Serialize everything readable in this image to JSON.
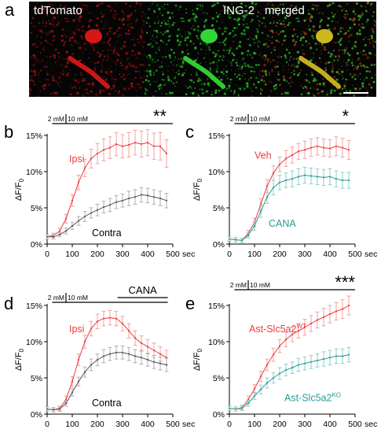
{
  "panel_a": {
    "letter": "a",
    "images": [
      {
        "label": "tdTomato",
        "channel": "red"
      },
      {
        "label": "ING-2",
        "channel": "green"
      },
      {
        "label": "merged",
        "channel": "merged"
      }
    ]
  },
  "colors": {
    "red": "#ee3b3b",
    "red_light": "#f4a0a0",
    "gray": "#555555",
    "gray_light": "#b0b0b0",
    "teal": "#2a9a95",
    "teal_light": "#8fcfcb"
  },
  "axis_common": {
    "ylabel": "ΔF/F",
    "ylabel_sub": "0",
    "xunit": "sec"
  },
  "chart_data": [
    {
      "panel": "b",
      "type": "line",
      "xlim": [
        0,
        500
      ],
      "ylim": [
        0,
        15
      ],
      "xticks": [
        "0",
        "100",
        "200",
        "300",
        "400",
        "500"
      ],
      "yticks": [
        "0%",
        "5%",
        "10%",
        "15%"
      ],
      "stim": {
        "label1": "2 mM",
        "label2": "10 mM",
        "stars": "**"
      },
      "series": [
        {
          "name": "Ipsi",
          "color": "red",
          "x": [
            0,
            25,
            50,
            75,
            100,
            125,
            150,
            175,
            200,
            225,
            250,
            275,
            300,
            325,
            350,
            375,
            400,
            425,
            450,
            475
          ],
          "y": [
            1.0,
            1.2,
            1.8,
            3.5,
            6.0,
            8.5,
            10.5,
            11.8,
            12.5,
            13.0,
            13.3,
            13.8,
            13.5,
            13.7,
            14.0,
            13.8,
            14.0,
            13.5,
            13.5,
            12.5
          ],
          "err": [
            0.3,
            0.3,
            0.4,
            0.6,
            0.8,
            1.0,
            1.2,
            1.3,
            1.4,
            1.5,
            1.5,
            1.6,
            1.6,
            1.7,
            1.7,
            1.8,
            1.8,
            1.8,
            1.9,
            1.9
          ]
        },
        {
          "name": "Contra",
          "color": "gray",
          "x": [
            0,
            25,
            50,
            75,
            100,
            125,
            150,
            175,
            200,
            225,
            250,
            275,
            300,
            325,
            350,
            375,
            400,
            425,
            450,
            475
          ],
          "y": [
            1.0,
            1.0,
            1.3,
            1.8,
            2.5,
            3.2,
            3.8,
            4.3,
            4.7,
            5.1,
            5.4,
            5.8,
            6.0,
            6.3,
            6.5,
            6.8,
            6.7,
            6.5,
            6.3,
            6.0
          ],
          "err": [
            0.3,
            0.3,
            0.3,
            0.4,
            0.5,
            0.6,
            0.7,
            0.7,
            0.8,
            0.8,
            0.9,
            0.9,
            0.9,
            1.0,
            1.0,
            1.0,
            1.0,
            1.0,
            1.0,
            1.0
          ]
        }
      ]
    },
    {
      "panel": "c",
      "type": "line",
      "xlim": [
        0,
        500
      ],
      "ylim": [
        0,
        15
      ],
      "xticks": [
        "0",
        "100",
        "200",
        "300",
        "400",
        "500"
      ],
      "yticks": [
        "0%",
        "5%",
        "10%",
        "15%"
      ],
      "stim": {
        "label1": "2 mM",
        "label2": "10 mM",
        "stars": "*"
      },
      "series": [
        {
          "name": "Veh",
          "color": "red",
          "x": [
            0,
            25,
            50,
            75,
            100,
            125,
            150,
            175,
            200,
            225,
            250,
            275,
            300,
            325,
            350,
            375,
            400,
            425,
            450,
            475
          ],
          "y": [
            0.7,
            0.6,
            0.5,
            1.5,
            3.0,
            5.5,
            8.0,
            9.8,
            11.0,
            11.8,
            12.3,
            12.8,
            13.0,
            13.3,
            13.5,
            13.3,
            13.2,
            13.5,
            13.3,
            13.0
          ],
          "err": [
            0.3,
            0.3,
            0.3,
            0.4,
            0.6,
            0.8,
            0.9,
            1.0,
            1.0,
            1.1,
            1.1,
            1.1,
            1.2,
            1.2,
            1.2,
            1.2,
            1.2,
            1.3,
            1.3,
            1.3
          ]
        },
        {
          "name": "CANA",
          "color": "teal",
          "x": [
            0,
            25,
            50,
            75,
            100,
            125,
            150,
            175,
            200,
            225,
            250,
            275,
            300,
            325,
            350,
            375,
            400,
            425,
            450,
            475
          ],
          "y": [
            0.7,
            0.6,
            0.5,
            1.2,
            2.5,
            4.5,
            6.5,
            7.8,
            8.5,
            8.8,
            9.0,
            9.3,
            9.5,
            9.4,
            9.3,
            9.2,
            9.3,
            9.0,
            8.8,
            8.8
          ],
          "err": [
            0.3,
            0.3,
            0.3,
            0.4,
            0.6,
            0.8,
            0.9,
            1.0,
            1.0,
            1.0,
            1.1,
            1.1,
            1.1,
            1.1,
            1.1,
            1.1,
            1.1,
            1.1,
            1.1,
            1.1
          ]
        }
      ]
    },
    {
      "panel": "d",
      "type": "line",
      "xlim": [
        0,
        500
      ],
      "ylim": [
        0,
        15
      ],
      "xticks": [
        "0",
        "100",
        "200",
        "300",
        "400",
        "500"
      ],
      "yticks": [
        "0%",
        "5%",
        "10%",
        "15%"
      ],
      "stim": {
        "label1": "2 mM",
        "label2": "10 mM",
        "stars": "",
        "drug": "CANA"
      },
      "series": [
        {
          "name": "Ipsi",
          "color": "red",
          "x": [
            0,
            25,
            50,
            75,
            100,
            125,
            150,
            175,
            200,
            225,
            250,
            275,
            300,
            325,
            350,
            375,
            400,
            425,
            450,
            475
          ],
          "y": [
            0.7,
            0.6,
            0.8,
            2.0,
            4.5,
            7.5,
            10.0,
            11.8,
            12.8,
            13.2,
            13.3,
            13.2,
            12.5,
            11.5,
            10.5,
            9.8,
            9.3,
            8.8,
            8.3,
            7.8
          ],
          "err": [
            0.3,
            0.3,
            0.3,
            0.5,
            0.7,
            0.8,
            0.9,
            1.0,
            1.0,
            1.0,
            1.0,
            1.0,
            1.0,
            1.0,
            1.0,
            1.0,
            1.0,
            1.0,
            1.0,
            1.0
          ]
        },
        {
          "name": "Contra",
          "color": "gray",
          "x": [
            0,
            25,
            50,
            75,
            100,
            125,
            150,
            175,
            200,
            225,
            250,
            275,
            300,
            325,
            350,
            375,
            400,
            425,
            450,
            475
          ],
          "y": [
            0.7,
            0.6,
            0.7,
            1.5,
            3.0,
            4.5,
            5.8,
            6.8,
            7.5,
            8.0,
            8.3,
            8.5,
            8.5,
            8.3,
            8.0,
            7.8,
            7.5,
            7.2,
            7.0,
            6.8
          ],
          "err": [
            0.3,
            0.3,
            0.3,
            0.4,
            0.5,
            0.6,
            0.7,
            0.8,
            0.8,
            0.9,
            0.9,
            0.9,
            0.9,
            0.9,
            0.9,
            0.9,
            0.9,
            0.9,
            0.9,
            0.9
          ]
        }
      ]
    },
    {
      "panel": "e",
      "type": "line",
      "xlim": [
        0,
        500
      ],
      "ylim": [
        0,
        15
      ],
      "xticks": [
        "0",
        "100",
        "200",
        "300",
        "400",
        "500"
      ],
      "yticks": [
        "0%",
        "5%",
        "10%",
        "15%"
      ],
      "stim": {
        "label1": "2 mM",
        "label2": "10 mM",
        "stars": "***"
      },
      "series": [
        {
          "name": "Ast-Slc5a2",
          "name_sup": "WT",
          "color": "red",
          "x": [
            0,
            25,
            50,
            75,
            100,
            125,
            150,
            175,
            200,
            225,
            250,
            275,
            300,
            325,
            350,
            375,
            400,
            425,
            450,
            475
          ],
          "y": [
            0.8,
            0.7,
            0.9,
            2.0,
            3.5,
            5.2,
            6.8,
            8.2,
            9.4,
            10.3,
            11.0,
            11.5,
            12.0,
            12.5,
            13.0,
            13.4,
            13.8,
            14.2,
            14.5,
            15.0
          ],
          "err": [
            0.3,
            0.3,
            0.3,
            0.5,
            0.6,
            0.7,
            0.8,
            0.9,
            0.9,
            1.0,
            1.0,
            1.0,
            1.1,
            1.1,
            1.1,
            1.2,
            1.2,
            1.2,
            1.3,
            1.3
          ]
        },
        {
          "name": "Ast-Slc5a2",
          "name_sup": "KO",
          "color": "teal",
          "x": [
            0,
            25,
            50,
            75,
            100,
            125,
            150,
            175,
            200,
            225,
            250,
            275,
            300,
            325,
            350,
            375,
            400,
            425,
            450,
            475
          ],
          "y": [
            0.8,
            0.7,
            0.8,
            1.5,
            2.5,
            3.4,
            4.3,
            5.0,
            5.6,
            6.1,
            6.4,
            6.8,
            7.0,
            7.2,
            7.4,
            7.6,
            7.8,
            8.0,
            8.0,
            8.2
          ],
          "err": [
            0.3,
            0.3,
            0.3,
            0.4,
            0.5,
            0.6,
            0.7,
            0.7,
            0.8,
            0.8,
            0.8,
            0.9,
            0.9,
            0.9,
            0.9,
            1.0,
            1.0,
            1.0,
            1.0,
            1.0
          ]
        }
      ]
    }
  ]
}
